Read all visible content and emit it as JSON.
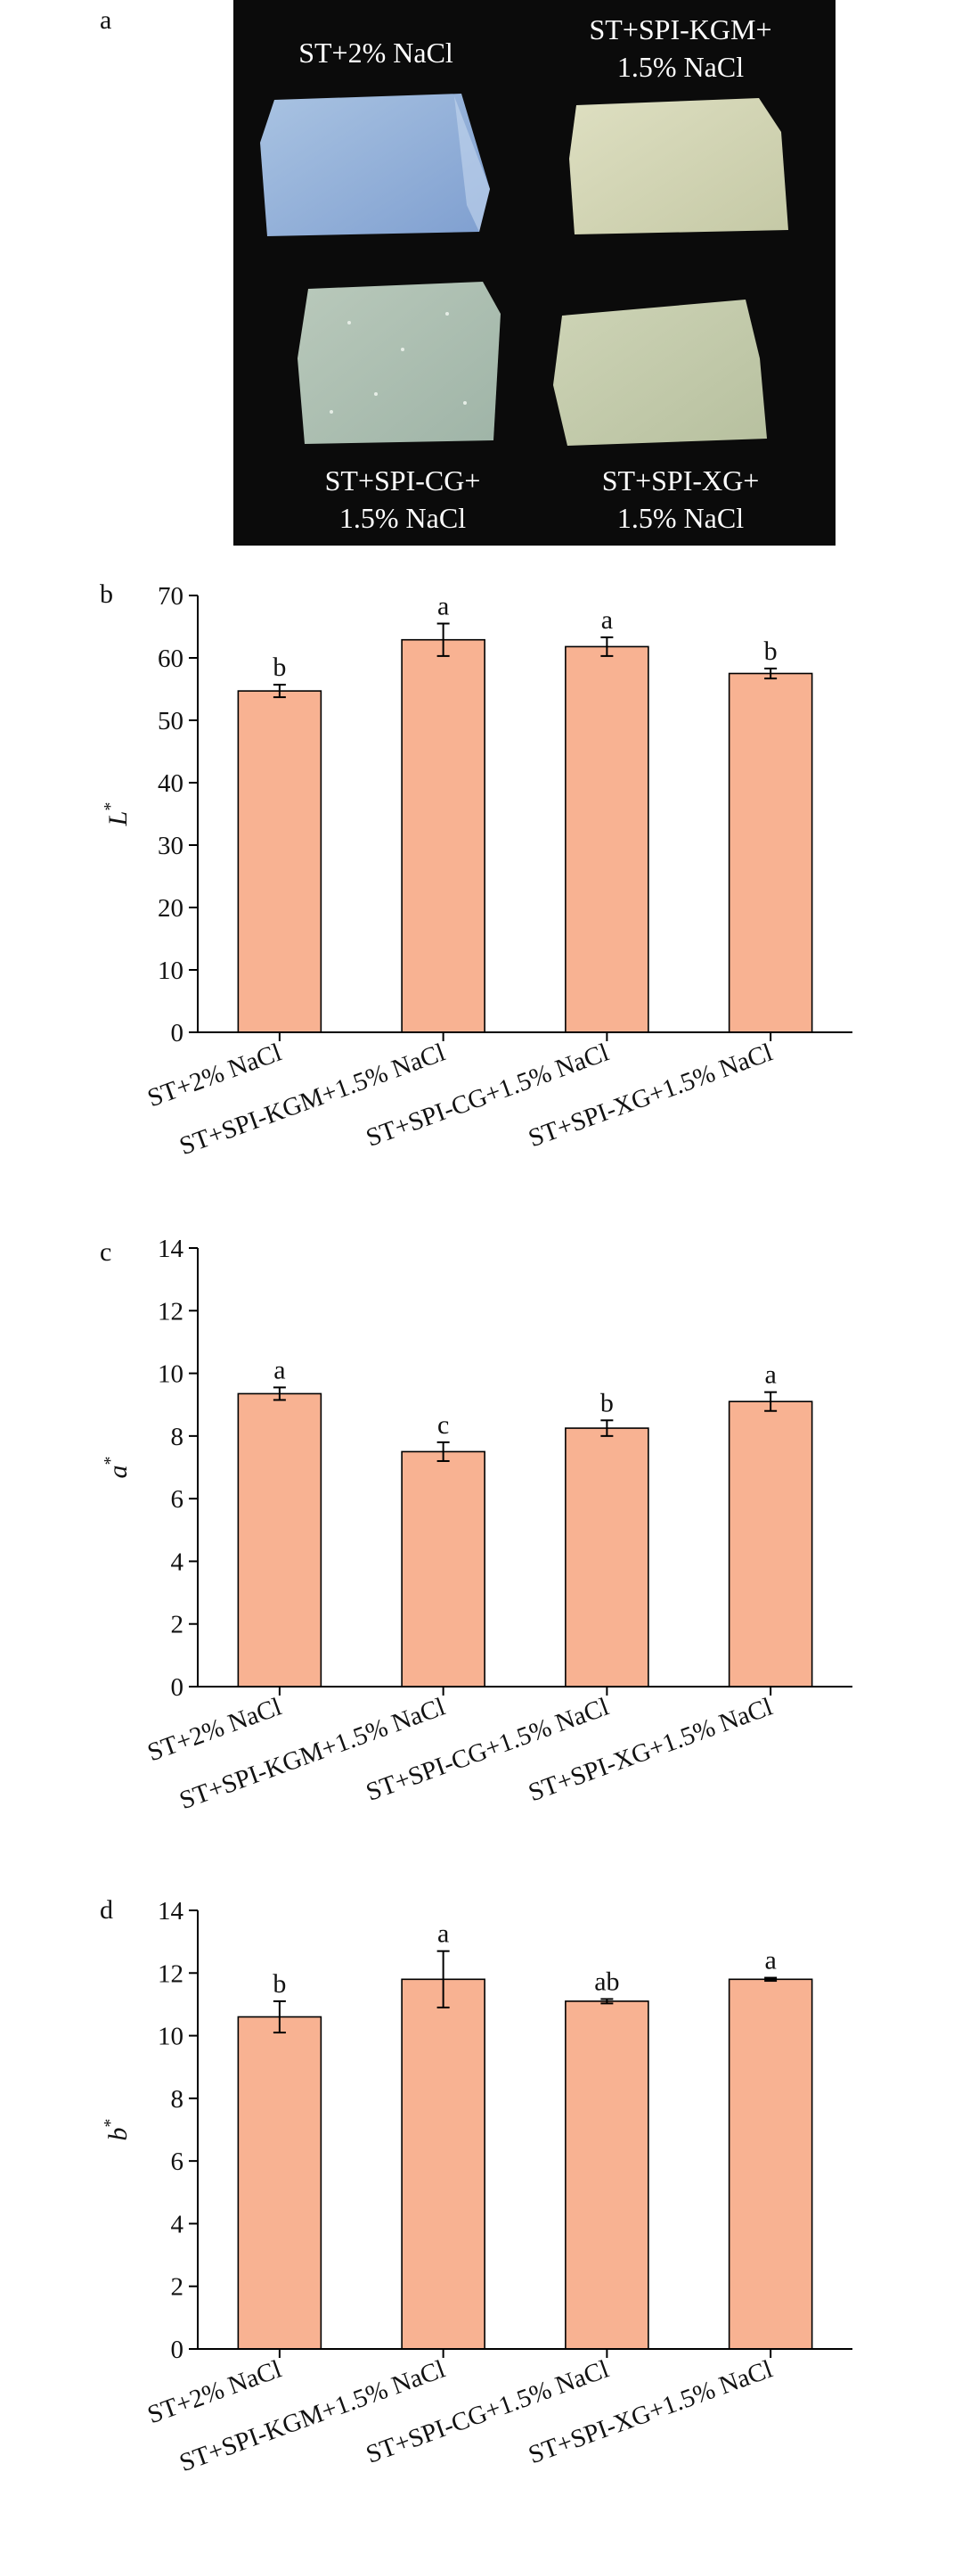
{
  "panels": [
    "a",
    "b",
    "c",
    "d"
  ],
  "photo": {
    "captions": [
      [
        "ST+2% NaCl"
      ],
      [
        "ST+SPI-KGM+",
        "1.5% NaCl"
      ],
      [
        "ST+SPI-CG+",
        "1.5% NaCl"
      ],
      [
        "ST+SPI-XG+",
        "1.5% NaCl"
      ]
    ]
  },
  "colors": {
    "bar": "#F8B292",
    "axis": "#000000",
    "photo_bg": "#0b0b0b"
  },
  "chart_data": [
    {
      "type": "bar",
      "panel": "b",
      "title": "",
      "xlabel": "",
      "ylabel": "L",
      "ylabel_sup": "*",
      "categories": [
        "ST+2% NaCl",
        "ST+SPI-KGM+1.5% NaCl",
        "ST+SPI-CG+1.5% NaCl",
        "ST+SPI-XG+1.5% NaCl"
      ],
      "values": [
        54.7,
        62.9,
        61.8,
        57.5
      ],
      "errors": [
        1.0,
        2.6,
        1.5,
        0.8
      ],
      "significance": [
        "b",
        "a",
        "a",
        "b"
      ],
      "ylim": [
        0,
        70
      ],
      "yticks": [
        0,
        10,
        20,
        30,
        40,
        50,
        60,
        70
      ],
      "grid": false
    },
    {
      "type": "bar",
      "panel": "c",
      "title": "",
      "xlabel": "",
      "ylabel": "a",
      "ylabel_sup": "*",
      "categories": [
        "ST+2% NaCl",
        "ST+SPI-KGM+1.5% NaCl",
        "ST+SPI-CG+1.5% NaCl",
        "ST+SPI-XG+1.5% NaCl"
      ],
      "values": [
        9.35,
        7.5,
        8.25,
        9.1
      ],
      "errors": [
        0.2,
        0.3,
        0.25,
        0.3
      ],
      "significance": [
        "a",
        "c",
        "b",
        "a"
      ],
      "ylim": [
        0,
        14
      ],
      "yticks": [
        0,
        2,
        4,
        6,
        8,
        10,
        12,
        14
      ],
      "grid": false
    },
    {
      "type": "bar",
      "panel": "d",
      "title": "",
      "xlabel": "",
      "ylabel": "b",
      "ylabel_sup": "*",
      "categories": [
        "ST+2% NaCl",
        "ST+SPI-KGM+1.5% NaCl",
        "ST+SPI-CG+1.5% NaCl",
        "ST+SPI-XG+1.5% NaCl"
      ],
      "values": [
        10.6,
        11.8,
        11.1,
        11.8
      ],
      "errors": [
        0.5,
        0.9,
        0.07,
        0.05
      ],
      "significance": [
        "b",
        "a",
        "ab",
        "a"
      ],
      "ylim": [
        0,
        14
      ],
      "yticks": [
        0,
        2,
        4,
        6,
        8,
        10,
        12,
        14
      ],
      "grid": false
    }
  ]
}
